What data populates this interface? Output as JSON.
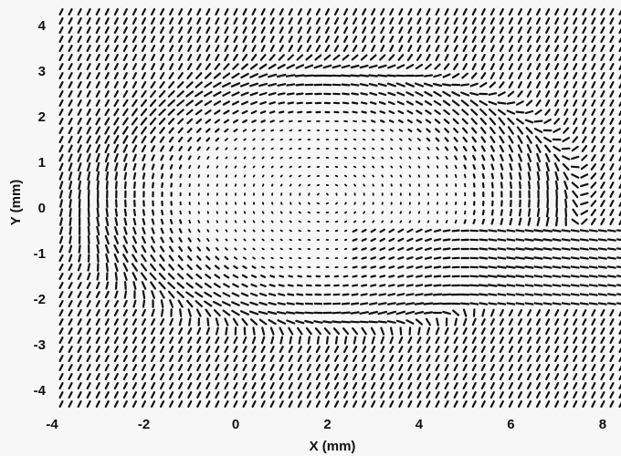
{
  "chart_data": {
    "type": "vector-field",
    "title": "",
    "xlabel": "X (mm)",
    "ylabel": "Y (mm)",
    "xlim": [
      -4,
      8.4
    ],
    "ylim": [
      -4.4,
      4.4
    ],
    "x_ticks": [
      -4,
      -2,
      0,
      2,
      4,
      6,
      8
    ],
    "y_ticks": [
      -4,
      -3,
      -2,
      -1,
      0,
      1,
      2,
      3,
      4
    ],
    "grid": false,
    "legend": "none",
    "arrow_color": "#111111",
    "background_color": "#f7f7f7",
    "field": {
      "x_start": -3.8,
      "x_step": 0.2,
      "x_count": 62,
      "y_start": -4.3,
      "y_step": 0.2,
      "y_count": 44,
      "uniform_direction": [
        0.5,
        1.0
      ],
      "recirculation_region": {
        "x_range": [
          -2.5,
          7.5
        ],
        "y_range": [
          -2.5,
          2.4
        ],
        "description_free": true
      },
      "jet_outlet_region": {
        "x_range": [
          2.5,
          8.4
        ],
        "y_range": [
          -2.3,
          -0.3
        ]
      }
    }
  }
}
